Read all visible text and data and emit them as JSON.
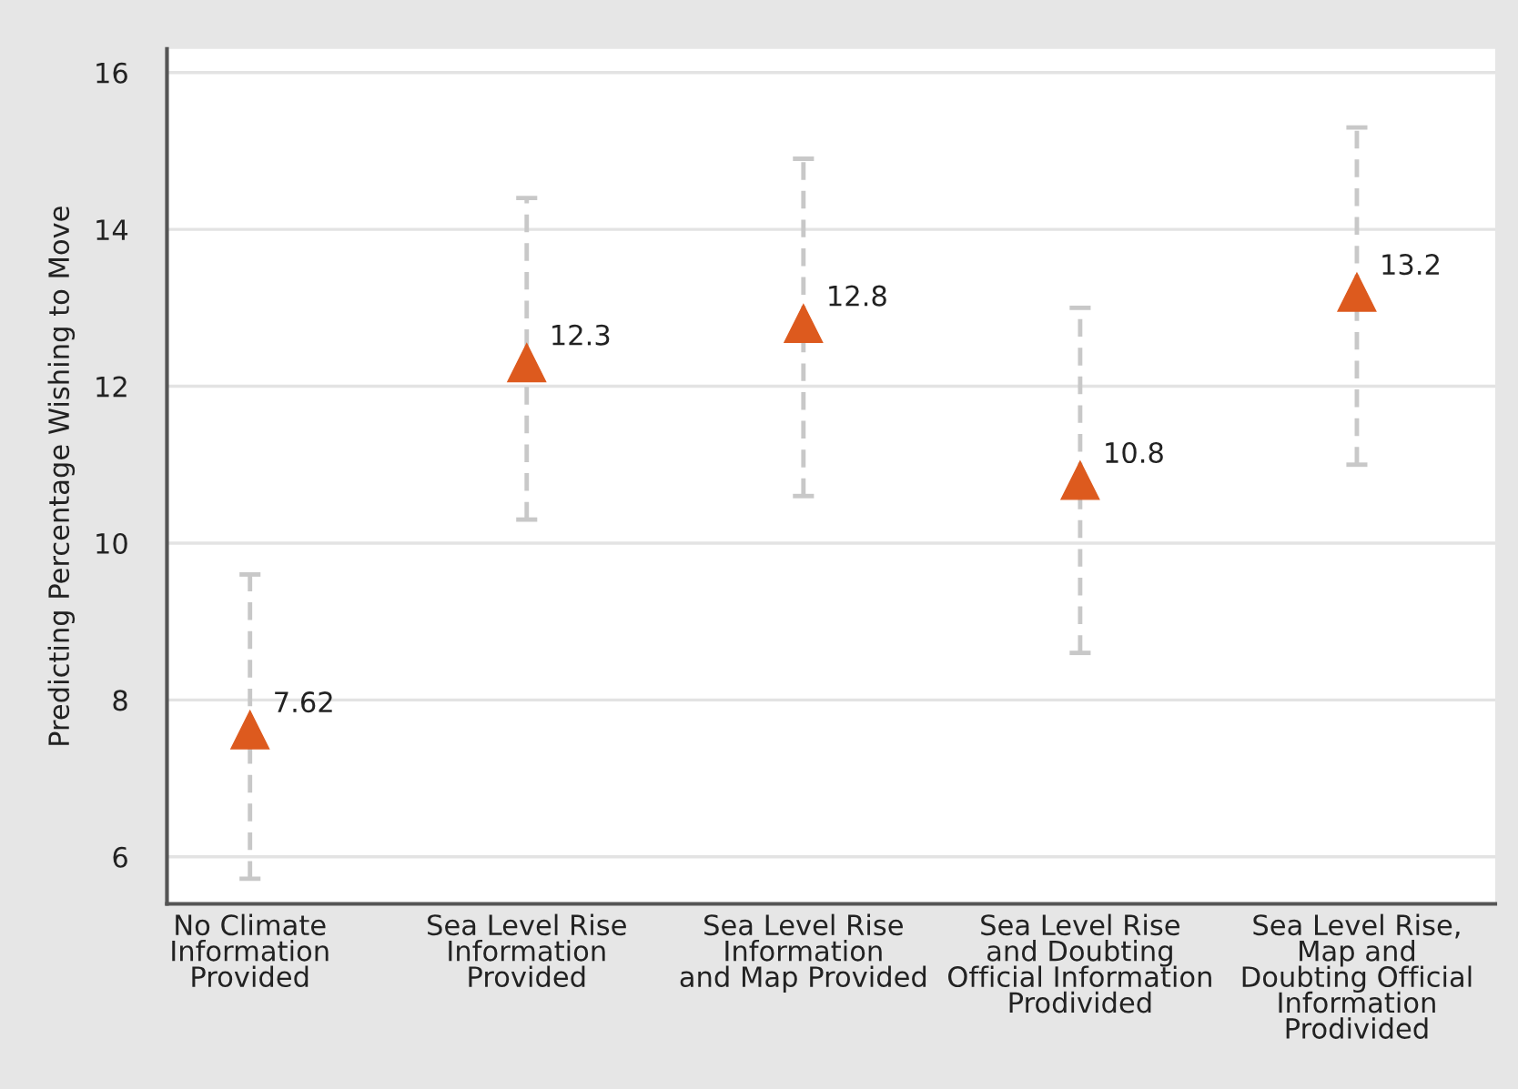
{
  "chart_data": {
    "type": "scatter",
    "ylabel": "Predicting Percentage Wishing to Move",
    "categories": [
      "No Climate\nInformation\nProvided",
      "Sea Level Rise\nInformation\nProvided",
      "Sea Level Rise\nInformation\nand Map Provided",
      "Sea Level Rise\nand Doubting\nOfficial Information\nProdivided",
      "Sea Level Rise,\nMap and\nDoubting Official\nInformation\nProdivided"
    ],
    "values": [
      7.62,
      12.3,
      12.8,
      10.8,
      13.2
    ],
    "errors": [
      [
        5.72,
        9.6
      ],
      [
        10.3,
        14.4
      ],
      [
        10.6,
        14.9
      ],
      [
        8.6,
        13.0
      ],
      [
        11.0,
        15.3
      ]
    ],
    "color": "#dd5a1e",
    "marker": "triangle",
    "data_labels": true,
    "ylim": [
      5.4,
      16.3
    ],
    "yticks": [
      6,
      8,
      10,
      12,
      14,
      16
    ],
    "grid": "y"
  }
}
